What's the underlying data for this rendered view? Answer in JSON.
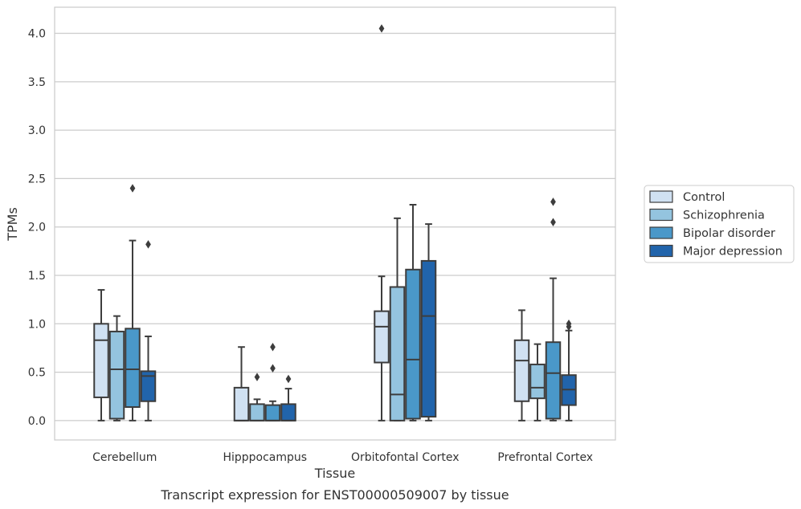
{
  "caption": "Transcript expression for ENST00000509007 by tissue",
  "chart_data": {
    "type": "box",
    "title": "",
    "xlabel": "Tissue",
    "ylabel": "TPMs",
    "categories": [
      "Cerebellum",
      "Hipppocampus",
      "Orbitofontal Cortex",
      "Prefrontal Cortex"
    ],
    "ylim": [
      -0.2,
      4.27
    ],
    "yticks": [
      0.0,
      0.5,
      1.0,
      1.5,
      2.0,
      2.5,
      3.0,
      3.5,
      4.0
    ],
    "ytick_labels": [
      "0.0",
      "0.5",
      "1.0",
      "1.5",
      "2.0",
      "2.5",
      "3.0",
      "3.5",
      "4.0"
    ],
    "grid": "horizontal",
    "legend_position": "right",
    "colors": {
      "Control": "#d0e1f2",
      "Schizophrenia": "#94c4df",
      "Bipolar disorder": "#4a98c9",
      "Major depression": "#2164ab",
      "edge": "#3d3d3d",
      "grid": "#cccccc",
      "frame": "#cccccc"
    },
    "series": [
      {
        "name": "Control",
        "boxes": [
          {
            "category": "Cerebellum",
            "whisker_low": 0.0,
            "q1": 0.24,
            "median": 0.83,
            "q3": 1.0,
            "whisker_high": 1.35,
            "outliers": []
          },
          {
            "category": "Hipppocampus",
            "whisker_low": 0.0,
            "q1": 0.0,
            "median": 0.0,
            "q3": 0.34,
            "whisker_high": 0.76,
            "outliers": []
          },
          {
            "category": "Orbitofontal Cortex",
            "whisker_low": 0.0,
            "q1": 0.6,
            "median": 0.97,
            "q3": 1.13,
            "whisker_high": 1.49,
            "outliers": [
              4.05
            ]
          },
          {
            "category": "Prefrontal Cortex",
            "whisker_low": 0.0,
            "q1": 0.2,
            "median": 0.62,
            "q3": 0.83,
            "whisker_high": 1.14,
            "outliers": []
          }
        ]
      },
      {
        "name": "Schizophrenia",
        "boxes": [
          {
            "category": "Cerebellum",
            "whisker_low": 0.0,
            "q1": 0.02,
            "median": 0.53,
            "q3": 0.92,
            "whisker_high": 1.08,
            "outliers": []
          },
          {
            "category": "Hipppocampus",
            "whisker_low": 0.0,
            "q1": 0.0,
            "median": 0.0,
            "q3": 0.17,
            "whisker_high": 0.22,
            "outliers": [
              0.45
            ]
          },
          {
            "category": "Orbitofontal Cortex",
            "whisker_low": 0.0,
            "q1": 0.0,
            "median": 0.27,
            "q3": 1.38,
            "whisker_high": 2.09,
            "outliers": []
          },
          {
            "category": "Prefrontal Cortex",
            "whisker_low": 0.0,
            "q1": 0.23,
            "median": 0.34,
            "q3": 0.58,
            "whisker_high": 0.79,
            "outliers": []
          }
        ]
      },
      {
        "name": "Bipolar disorder",
        "boxes": [
          {
            "category": "Cerebellum",
            "whisker_low": 0.0,
            "q1": 0.14,
            "median": 0.53,
            "q3": 0.95,
            "whisker_high": 1.86,
            "outliers": [
              2.4
            ]
          },
          {
            "category": "Hipppocampus",
            "whisker_low": 0.0,
            "q1": 0.0,
            "median": 0.0,
            "q3": 0.16,
            "whisker_high": 0.2,
            "outliers": [
              0.54,
              0.76
            ]
          },
          {
            "category": "Orbitofontal Cortex",
            "whisker_low": 0.0,
            "q1": 0.02,
            "median": 0.63,
            "q3": 1.56,
            "whisker_high": 2.23,
            "outliers": []
          },
          {
            "category": "Prefrontal Cortex",
            "whisker_low": 0.0,
            "q1": 0.02,
            "median": 0.49,
            "q3": 0.81,
            "whisker_high": 1.47,
            "outliers": [
              2.05,
              2.26
            ]
          }
        ]
      },
      {
        "name": "Major depression",
        "boxes": [
          {
            "category": "Cerebellum",
            "whisker_low": 0.0,
            "q1": 0.2,
            "median": 0.46,
            "q3": 0.51,
            "whisker_high": 0.87,
            "outliers": [
              1.82
            ]
          },
          {
            "category": "Hipppocampus",
            "whisker_low": 0.0,
            "q1": 0.0,
            "median": 0.0,
            "q3": 0.17,
            "whisker_high": 0.33,
            "outliers": [
              0.43
            ]
          },
          {
            "category": "Orbitofontal Cortex",
            "whisker_low": 0.0,
            "q1": 0.04,
            "median": 1.08,
            "q3": 1.65,
            "whisker_high": 2.03,
            "outliers": []
          },
          {
            "category": "Prefrontal Cortex",
            "whisker_low": 0.0,
            "q1": 0.16,
            "median": 0.32,
            "q3": 0.47,
            "whisker_high": 0.93,
            "outliers": [
              0.97,
              1.0
            ]
          }
        ]
      }
    ]
  }
}
